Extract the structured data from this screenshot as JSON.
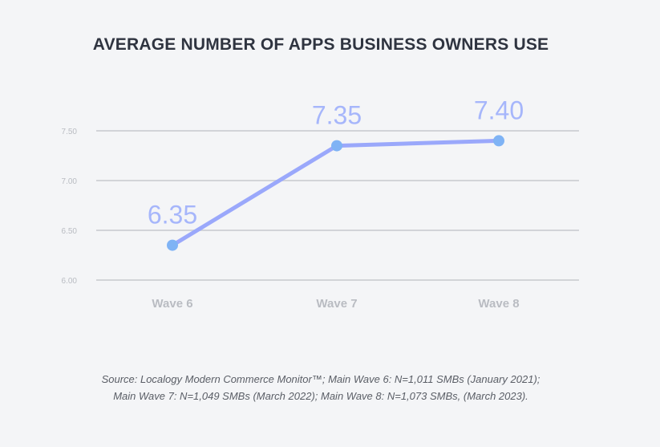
{
  "title": "AVERAGE NUMBER OF APPS BUSINESS OWNERS USE",
  "colors": {
    "line": "#9aa8fb",
    "marker": "#7fb3f5",
    "value_label": "#a6b6fb",
    "grid": "#d2d4d8",
    "tick": "#b9bcc2",
    "background": "#f4f5f7"
  },
  "chart_data": {
    "type": "line",
    "categories": [
      "Wave 6",
      "Wave 7",
      "Wave 8"
    ],
    "values": [
      6.35,
      7.35,
      7.4
    ],
    "value_labels": [
      "6.35",
      "7.35",
      "7.40"
    ],
    "ylim": [
      6.0,
      7.5
    ],
    "yticks": [
      "6.00",
      "6.50",
      "7.00",
      "7.50"
    ],
    "grid": true,
    "legend": "none"
  },
  "source": {
    "line1": "Source: Localogy Modern Commerce Monitor™;  Main Wave 6: N=1,011 SMBs (January 2021);",
    "line2": "Main Wave 7: N=1,049 SMBs (March 2022); Main Wave 8: N=1,073 SMBs, (March 2023)."
  }
}
